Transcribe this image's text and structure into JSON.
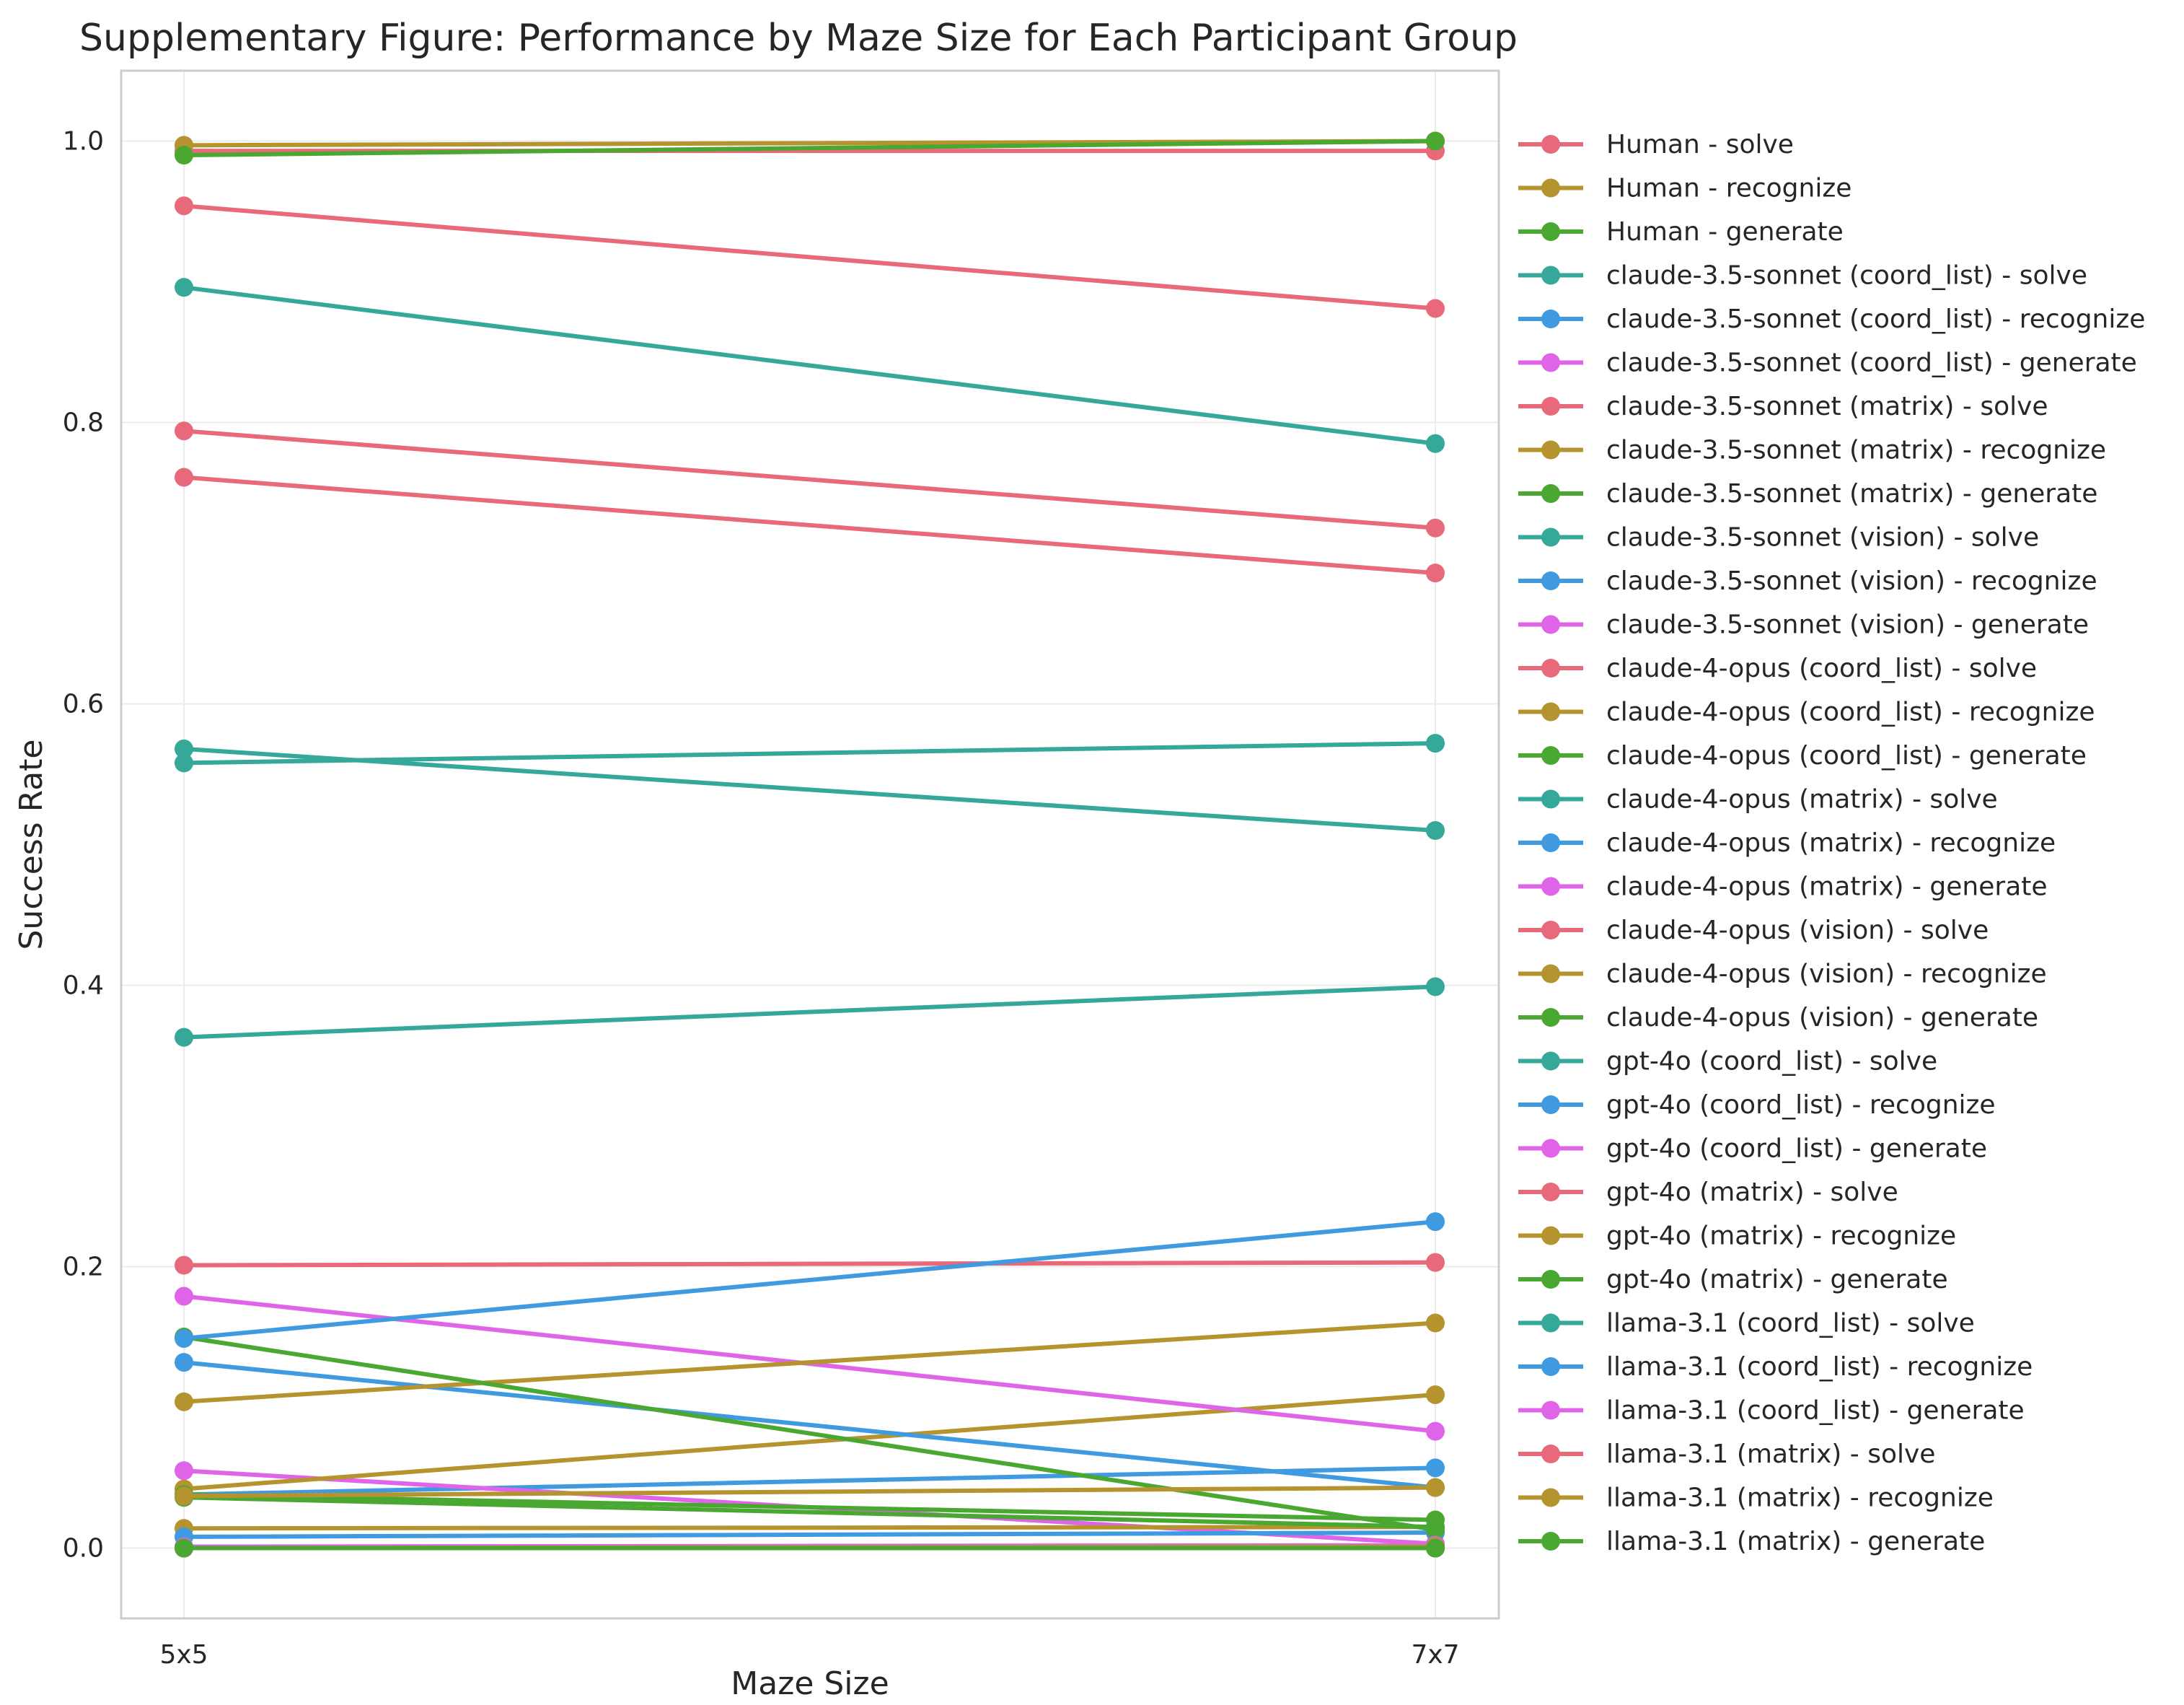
{
  "colors": {
    "solve": "#e8697a",
    "recognize": "#b59430",
    "generate": "#4aa832",
    "solve_teal": "#36a89a",
    "recognize_blue": "#3f9ae0",
    "generate_magenta": "#df64e8",
    "grid": "#ebebeb",
    "frame": "#cccccc"
  },
  "chart_data": {
    "type": "line",
    "title": "Supplementary Figure: Performance by Maze Size for Each Participant Group",
    "xlabel": "Maze Size",
    "ylabel": "Success Rate",
    "categories": [
      "5x5",
      "7x7"
    ],
    "ylim": [
      -0.05,
      1.05
    ],
    "yticks": [
      "0.0",
      "0.2",
      "0.4",
      "0.6",
      "0.8",
      "1.0"
    ],
    "grid": true,
    "legend_position": "outside-right",
    "series": [
      {
        "name": "Human - solve",
        "color": "solve",
        "values": [
          0.993,
          0.993
        ]
      },
      {
        "name": "Human - recognize",
        "color": "recognize",
        "values": [
          0.997,
          1.0
        ]
      },
      {
        "name": "Human - generate",
        "color": "generate",
        "values": [
          0.99,
          1.0
        ]
      },
      {
        "name": "claude-3.5-sonnet (coord_list) - solve",
        "color": "solve_teal",
        "values": [
          0.896,
          0.785
        ]
      },
      {
        "name": "claude-3.5-sonnet (coord_list) - recognize",
        "color": "recognize_blue",
        "values": [
          0.038,
          0.057
        ]
      },
      {
        "name": "claude-3.5-sonnet (coord_list) - generate",
        "color": "generate_magenta",
        "values": [
          0.055,
          0.003
        ]
      },
      {
        "name": "claude-3.5-sonnet (matrix) - solve",
        "color": "solve",
        "values": [
          0.794,
          0.725
        ]
      },
      {
        "name": "claude-3.5-sonnet (matrix) - recognize",
        "color": "recognize",
        "values": [
          0.014,
          0.015
        ]
      },
      {
        "name": "claude-3.5-sonnet (matrix) - generate",
        "color": "generate",
        "values": [
          0.036,
          0.015
        ]
      },
      {
        "name": "claude-3.5-sonnet (vision) - solve",
        "color": "solve_teal",
        "values": [
          0.363,
          0.399
        ]
      },
      {
        "name": "claude-3.5-sonnet (vision) - recognize",
        "color": "recognize_blue",
        "values": [
          0.008,
          0.011
        ]
      },
      {
        "name": "claude-3.5-sonnet (vision) - generate",
        "color": "generate_magenta",
        "values": [
          0.0,
          0.0
        ]
      },
      {
        "name": "claude-4-opus (coord_list) - solve",
        "color": "solve",
        "values": [
          0.954,
          0.881
        ]
      },
      {
        "name": "claude-4-opus (coord_list) - recognize",
        "color": "recognize",
        "values": [
          0.042,
          0.109
        ]
      },
      {
        "name": "claude-4-opus (coord_list) - generate",
        "color": "generate",
        "values": [
          0.038,
          0.02
        ]
      },
      {
        "name": "claude-4-opus (matrix) - solve",
        "color": "solve_teal",
        "values": [
          0.568,
          0.51
        ]
      },
      {
        "name": "claude-4-opus (matrix) - recognize",
        "color": "recognize_blue",
        "values": [
          0.132,
          0.043
        ]
      },
      {
        "name": "claude-4-opus (matrix) - generate",
        "color": "generate_magenta",
        "values": [
          0.179,
          0.083
        ]
      },
      {
        "name": "claude-4-opus (vision) - solve",
        "color": "solve",
        "values": [
          0.201,
          0.203
        ]
      },
      {
        "name": "claude-4-opus (vision) - recognize",
        "color": "recognize",
        "values": [
          0.104,
          0.16
        ]
      },
      {
        "name": "claude-4-opus (vision) - generate",
        "color": "generate",
        "values": [
          0.15,
          0.013
        ]
      },
      {
        "name": "gpt-4o (coord_list) - solve",
        "color": "solve_teal",
        "values": [
          0.558,
          0.572
        ]
      },
      {
        "name": "gpt-4o (coord_list) - recognize",
        "color": "recognize_blue",
        "values": [
          0.149,
          0.232
        ]
      },
      {
        "name": "gpt-4o (coord_list) - generate",
        "color": "generate_magenta",
        "values": [
          0.001,
          0.002
        ]
      },
      {
        "name": "gpt-4o (matrix) - solve",
        "color": "solve",
        "values": [
          0.761,
          0.693
        ]
      },
      {
        "name": "gpt-4o (matrix) - recognize",
        "color": "recognize",
        "values": [
          0.037,
          0.043
        ]
      },
      {
        "name": "gpt-4o (matrix) - generate",
        "color": "generate",
        "values": [
          0.0,
          0.0
        ]
      },
      {
        "name": "llama-3.1 (coord_list) - solve",
        "color": "solve_teal",
        "values": [
          0.0,
          0.0
        ]
      },
      {
        "name": "llama-3.1 (coord_list) - recognize",
        "color": "recognize_blue",
        "values": [
          0.0,
          0.001
        ]
      },
      {
        "name": "llama-3.1 (coord_list) - generate",
        "color": "generate_magenta",
        "values": [
          0.0,
          0.001
        ]
      },
      {
        "name": "llama-3.1 (matrix) - solve",
        "color": "solve",
        "values": [
          0.0,
          0.0
        ]
      },
      {
        "name": "llama-3.1 (matrix) - recognize",
        "color": "recognize",
        "values": [
          0.0,
          0.001
        ]
      },
      {
        "name": "llama-3.1 (matrix) - generate",
        "color": "generate",
        "values": [
          0.0,
          0.0
        ]
      }
    ]
  }
}
